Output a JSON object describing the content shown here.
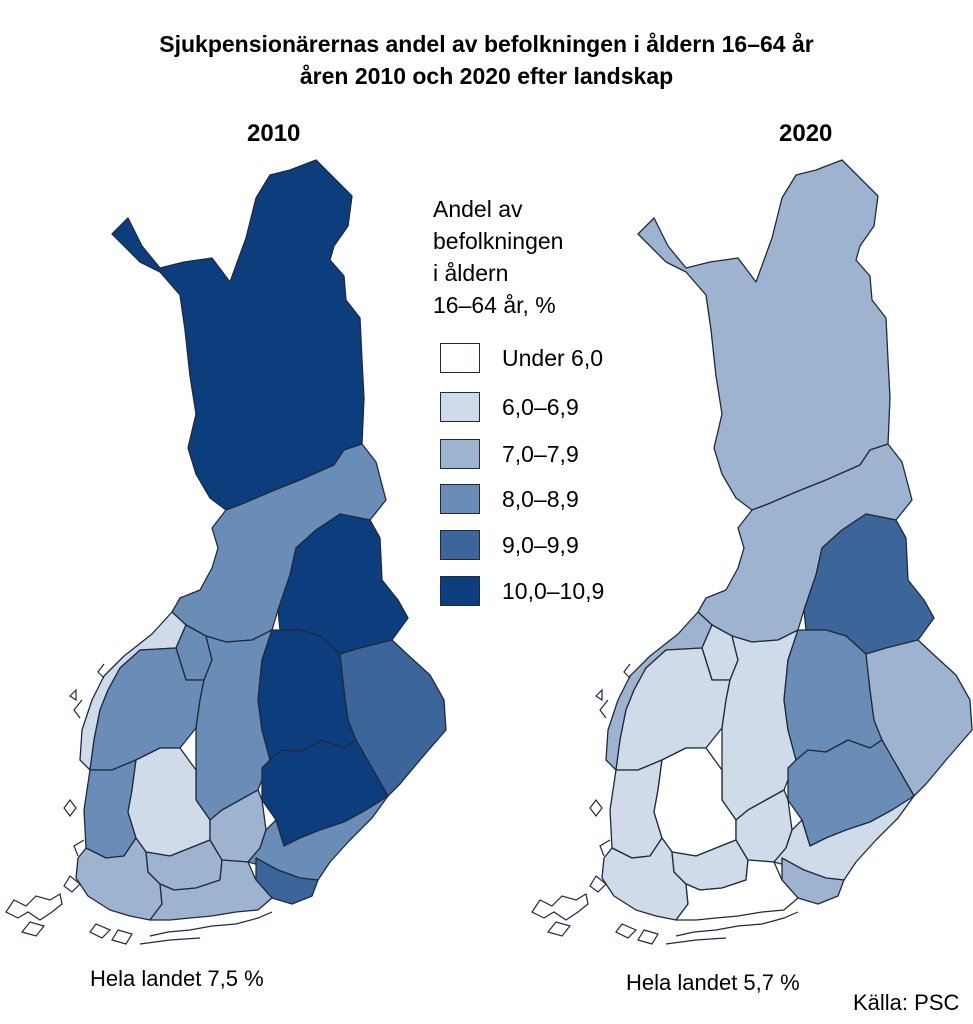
{
  "title_line1": "Sjukpensionärernas andel av befolkningen i åldern 16–64 år",
  "title_line2": "åren 2010 och 2020 efter landskap",
  "maps": [
    {
      "year": "2010",
      "national_label": "Hela landet 7,5 %",
      "regions": {
        "lappland": 5,
        "norra_osterbotten": 3,
        "kajanaland": 5,
        "ostra": 3,
        "mellersta": 3,
        "osterbotten": 1,
        "sydosterbotten": 3,
        "norra_savolax": 5,
        "norra_karelen": 4,
        "sodra_savolax": 5,
        "satakunta": 3,
        "birkaland": 1,
        "egentliga_finland": 2,
        "kanta_hame": 2,
        "paijanne": 2,
        "kymmenedalen": 3,
        "sodra_karelen": 4,
        "nyland": 2
      }
    },
    {
      "year": "2020",
      "national_label": "Hela landet 5,7 %",
      "regions": {
        "lappland": 2,
        "norra_osterbotten": 2,
        "kajanaland": 4,
        "ostra": 1,
        "mellersta": 1,
        "osterbotten": 2,
        "sydosterbotten": 1,
        "norra_savolax": 3,
        "norra_karelen": 2,
        "sodra_savolax": 3,
        "satakunta": 1,
        "birkaland": 0,
        "egentliga_finland": 1,
        "kanta_hame": 1,
        "paijanne": 1,
        "kymmenedalen": 1,
        "sodra_karelen": 2,
        "nyland": 0
      }
    }
  ],
  "legend": {
    "title_lines": [
      "Andel av",
      "befolkningen",
      "i åldern",
      "16–64 år, %"
    ],
    "classes": [
      {
        "label": "Under 6,0",
        "color": "#ffffff"
      },
      {
        "label": "6,0–6,9",
        "color": "#cfdbe9"
      },
      {
        "label": "7,0–7,9",
        "color": "#9db3cf"
      },
      {
        "label": "8,0–8,9",
        "color": "#6a8db7"
      },
      {
        "label": "9,0–9,9",
        "color": "#3c6599"
      },
      {
        "label": "10,0–10,9",
        "color": "#0c3d7c"
      }
    ]
  },
  "source": "Källa: PSC"
}
